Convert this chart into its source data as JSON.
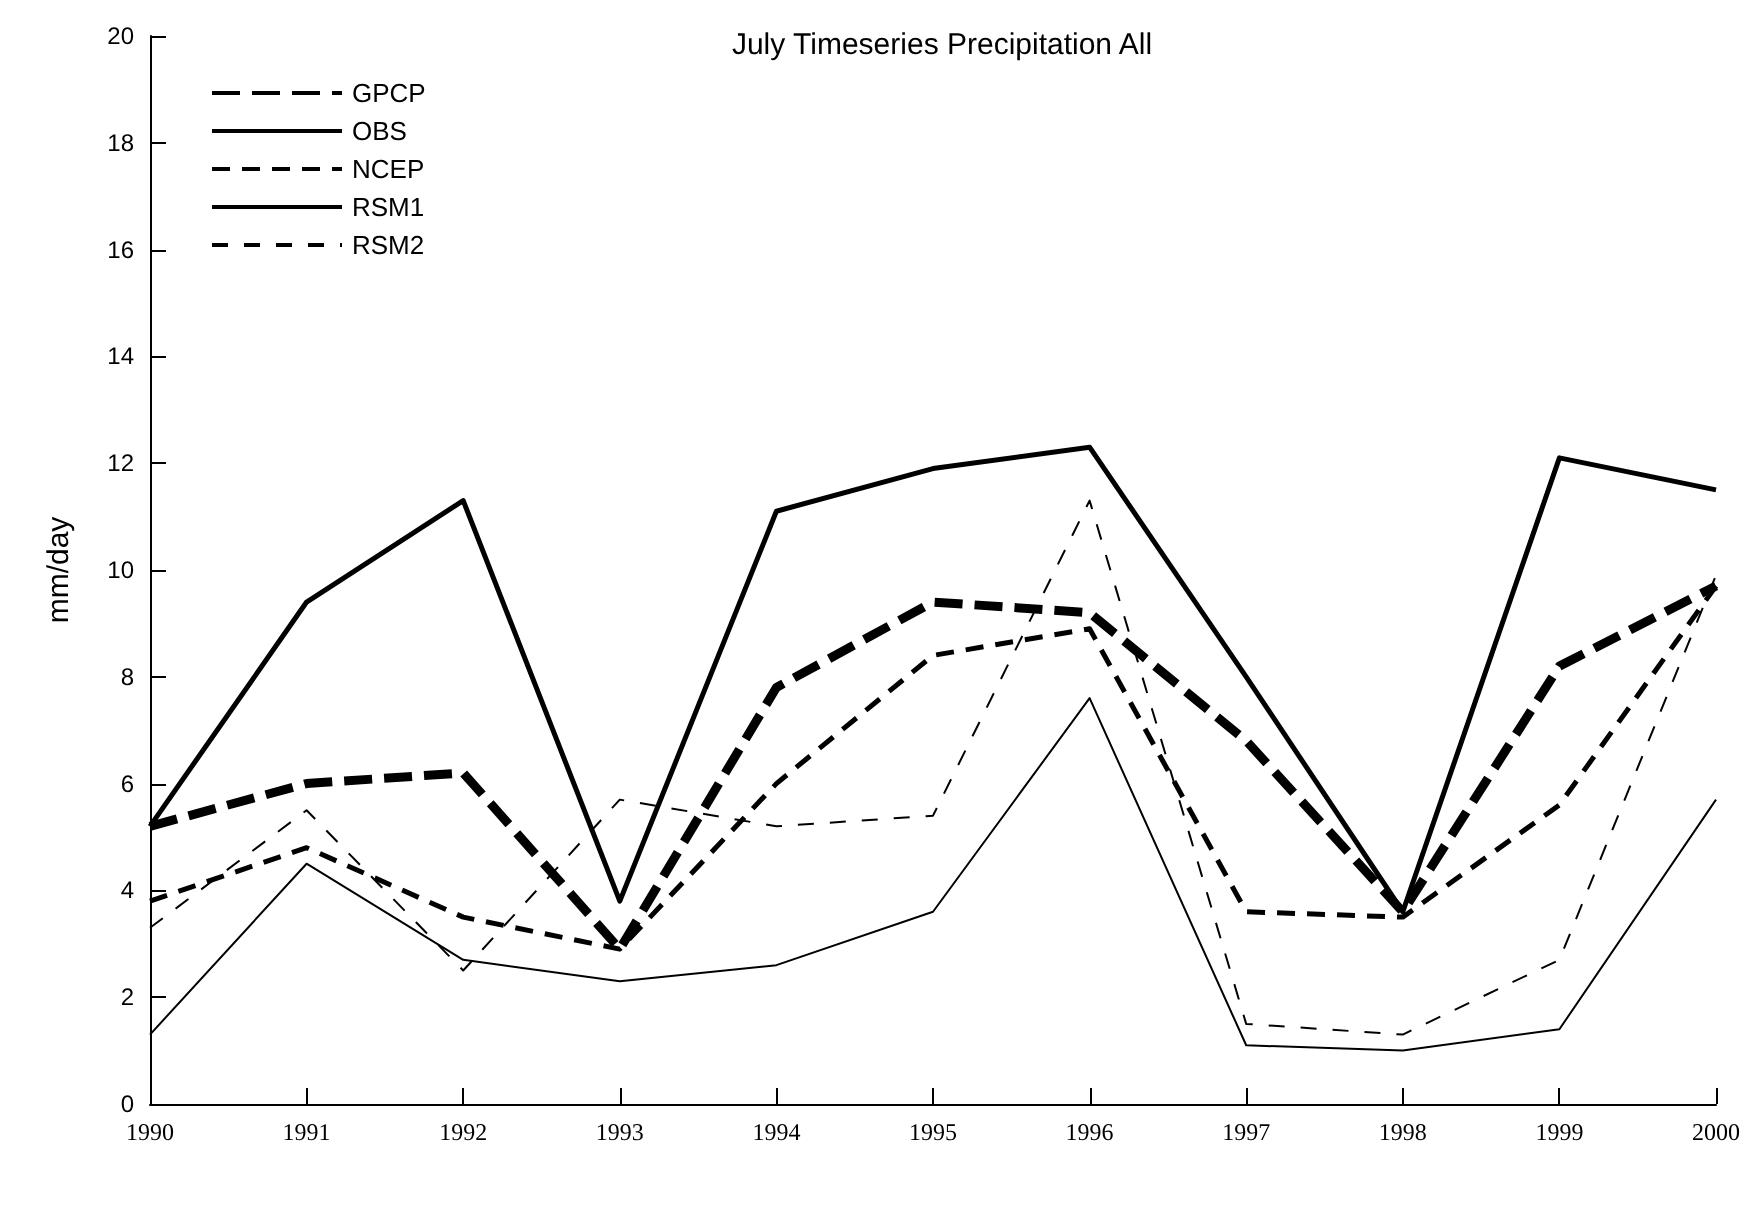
{
  "chart_data": {
    "type": "line",
    "title": "July Timeseries Precipitation All",
    "ylabel": "mm/day",
    "x": [
      1990,
      1991,
      1992,
      1993,
      1994,
      1995,
      1996,
      1997,
      1998,
      1999,
      2000
    ],
    "xlim": [
      1990,
      2000
    ],
    "xticks": [
      1990,
      1991,
      1992,
      1993,
      1994,
      1995,
      1996,
      1997,
      1998,
      1999,
      2000
    ],
    "ylim": [
      0,
      20
    ],
    "yticks": [
      0,
      2,
      4,
      6,
      8,
      10,
      12,
      14,
      16,
      18,
      20
    ],
    "grid": false,
    "legend": "top left",
    "marker": "none",
    "series": [
      {
        "name": "GPCP",
        "color": "#000000",
        "line_style": "dashed",
        "values": [
          5.2,
          6.0,
          6.2,
          2.9,
          7.8,
          9.4,
          9.2,
          6.8,
          3.6,
          8.2,
          9.7
        ]
      },
      {
        "name": "OBS",
        "color": "#000000",
        "line_style": "solid",
        "values": [
          5.2,
          9.4,
          11.3,
          3.8,
          11.1,
          11.9,
          12.3,
          8.0,
          3.6,
          12.1,
          11.5
        ]
      },
      {
        "name": "NCEP",
        "color": "#000000",
        "line_style": "dashed",
        "values": [
          3.8,
          4.8,
          3.5,
          2.9,
          6.0,
          8.4,
          8.9,
          3.6,
          3.5,
          5.6,
          9.7
        ]
      },
      {
        "name": "RSM1",
        "color": "#000000",
        "line_style": "solid",
        "values": [
          1.3,
          4.5,
          2.7,
          2.3,
          2.6,
          3.6,
          7.6,
          1.1,
          1.0,
          1.4,
          5.7
        ]
      },
      {
        "name": "RSM2",
        "color": "#000000",
        "line_style": "dashed",
        "values": [
          3.3,
          5.5,
          2.5,
          5.7,
          5.2,
          5.4,
          11.3,
          1.5,
          1.3,
          2.7,
          9.9
        ]
      }
    ]
  }
}
